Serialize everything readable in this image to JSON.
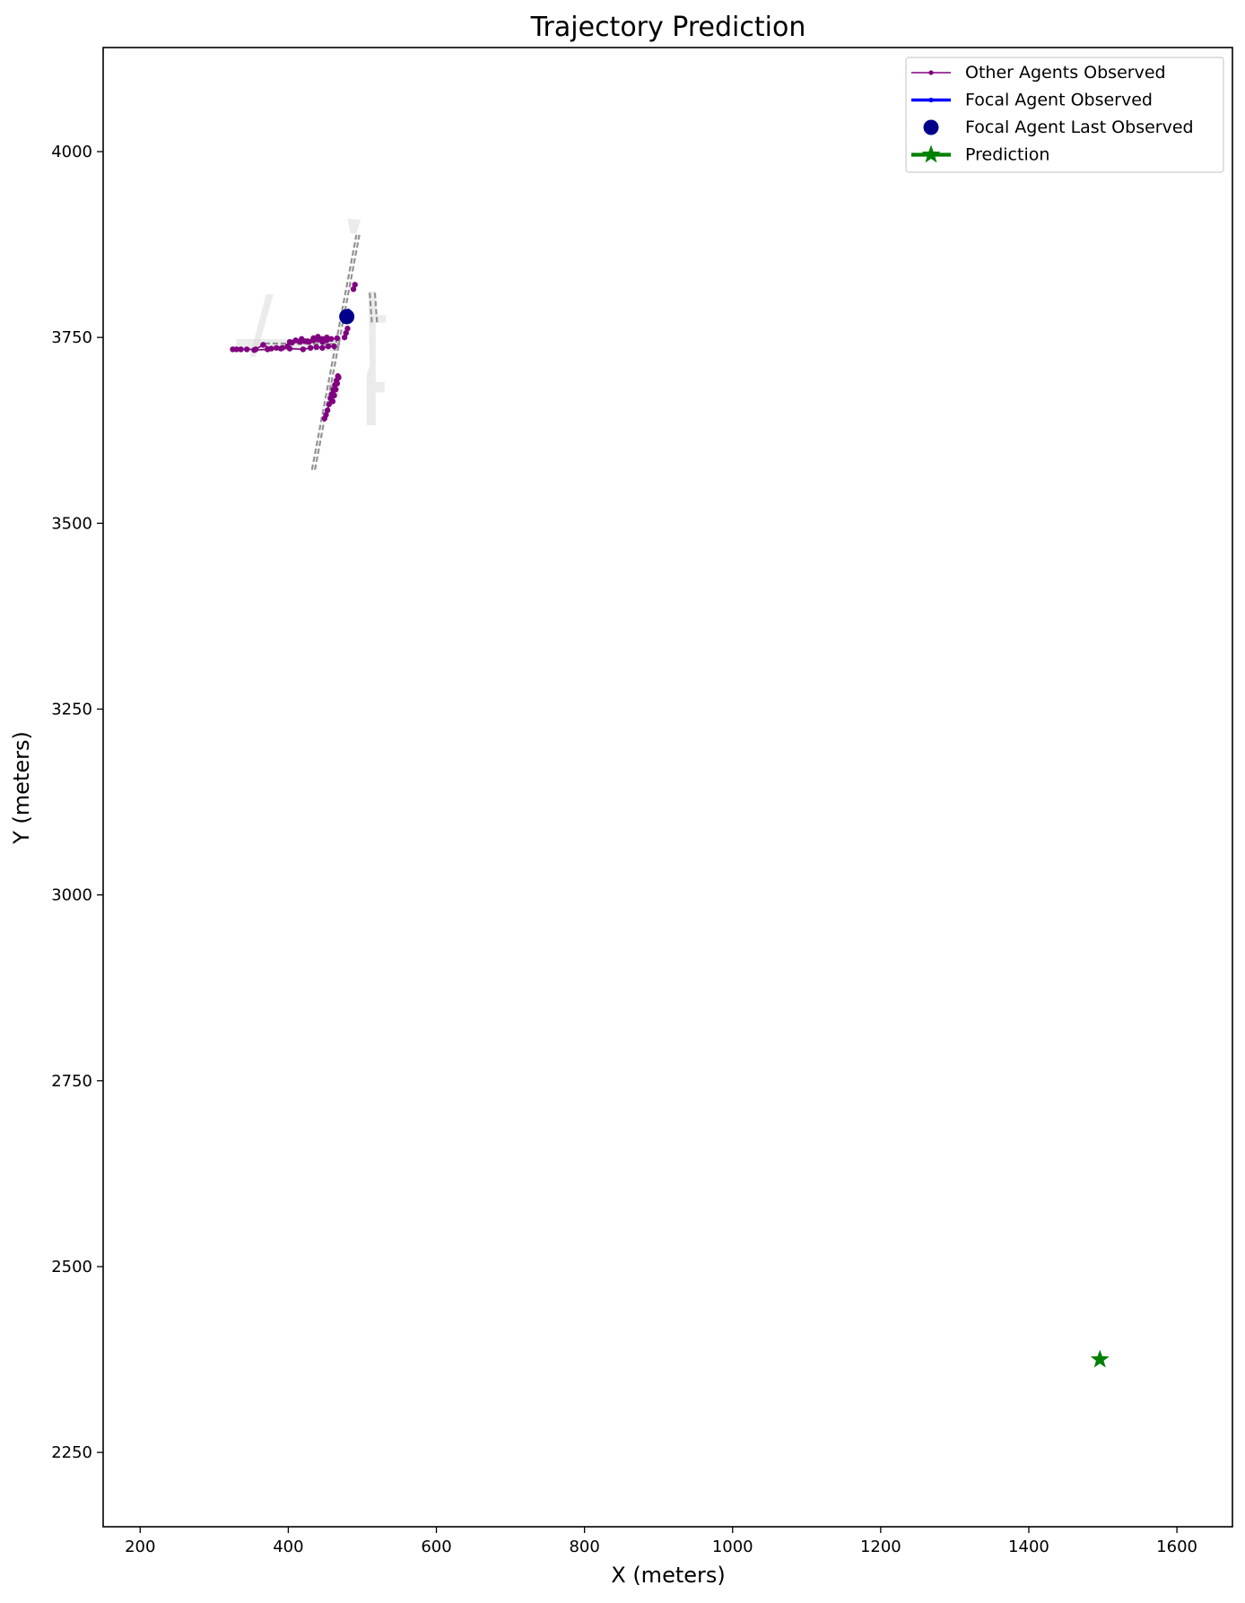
{
  "chart_data": {
    "type": "scatter",
    "title": "Trajectory Prediction",
    "xlabel": "X (meters)",
    "ylabel": "Y (meters)",
    "xlim": [
      150,
      1675
    ],
    "ylim": [
      2150,
      4140
    ],
    "xticks": [
      200,
      400,
      600,
      800,
      1000,
      1200,
      1400,
      1600
    ],
    "yticks": [
      2250,
      2500,
      2750,
      3000,
      3250,
      3500,
      3750,
      4000
    ],
    "grid": false,
    "legend_position": "top-right",
    "legend": [
      {
        "label": "Other Agents Observed",
        "style": "thin-line-dot",
        "color": "#800080"
      },
      {
        "label": "Focal Agent Observed",
        "style": "thick-line-dot",
        "color": "#0000ff"
      },
      {
        "label": "Focal Agent Last Observed",
        "style": "marker",
        "color": "#00008b"
      },
      {
        "label": "Prediction",
        "style": "line-star",
        "color": "#008000"
      }
    ],
    "map_lanes": [
      [
        [
          436,
          3572
        ],
        [
          496,
          3888
        ]
      ],
      [
        [
          432,
          3572
        ],
        [
          492,
          3888
        ]
      ],
      [
        [
          510,
          3810
        ],
        [
          513,
          3768
        ]
      ],
      [
        [
          517,
          3810
        ],
        [
          520,
          3768
        ]
      ],
      [
        [
          368,
          3742
        ],
        [
          470,
          3741
        ]
      ]
    ],
    "map_areas": [
      [
        [
          356,
          3724
        ],
        [
          380,
          3808
        ],
        [
          370,
          3808
        ],
        [
          348,
          3724
        ]
      ],
      [
        [
          330,
          3748
        ],
        [
          470,
          3748
        ],
        [
          470,
          3732
        ],
        [
          330,
          3732
        ]
      ],
      [
        [
          508,
          3812
        ],
        [
          518,
          3812
        ],
        [
          518,
          3780
        ],
        [
          532,
          3780
        ],
        [
          532,
          3770
        ],
        [
          518,
          3770
        ],
        [
          518,
          3690
        ],
        [
          530,
          3690
        ],
        [
          530,
          3676
        ],
        [
          518,
          3676
        ],
        [
          518,
          3632
        ],
        [
          506,
          3632
        ],
        [
          506,
          3700
        ],
        [
          510,
          3712
        ]
      ],
      [
        [
          480,
          3910
        ],
        [
          498,
          3908
        ],
        [
          492,
          3890
        ],
        [
          484,
          3890
        ]
      ],
      [
        [
          455,
          3690
        ],
        [
          470,
          3690
        ],
        [
          468,
          3668
        ],
        [
          454,
          3668
        ]
      ]
    ],
    "other_agents": [
      {
        "name": "Other Agents Observed",
        "x": [
          325,
          330,
          336,
          344,
          356,
          366,
          377,
          384,
          392,
          399,
          405,
          410,
          416,
          422,
          428,
          434,
          440,
          446,
          452
        ],
        "y": [
          3734,
          3734,
          3734,
          3734,
          3734,
          3740,
          3735,
          3736,
          3736,
          3738,
          3743,
          3746,
          3744,
          3745,
          3744,
          3746,
          3747,
          3744,
          3746
        ]
      },
      {
        "name": "Other Agents Observed",
        "x": [
          402,
          410,
          418,
          426,
          434,
          440,
          446,
          452,
          458,
          466
        ],
        "y": [
          3744,
          3746,
          3748,
          3745,
          3749,
          3751,
          3748,
          3750,
          3748,
          3749
        ]
      },
      {
        "name": "Other Agents Observed",
        "x": [
          354,
          372,
          390,
          402,
          420,
          430,
          438,
          446,
          454,
          462
        ],
        "y": [
          3733,
          3734,
          3735,
          3735,
          3734,
          3736,
          3737,
          3736,
          3738,
          3738
        ]
      },
      {
        "name": "Other Agents Observed",
        "x": [
          449,
          451,
          453,
          455,
          457,
          459,
          461,
          463,
          465,
          467
        ],
        "y": [
          3641,
          3646,
          3652,
          3660,
          3668,
          3674,
          3680,
          3686,
          3692,
          3698
        ]
      },
      {
        "name": "Other Agents Observed",
        "x": [
          460,
          462,
          464,
          466,
          468
        ],
        "y": [
          3664,
          3672,
          3680,
          3688,
          3696
        ]
      },
      {
        "name": "Other Agents Observed",
        "x": [
          476,
          478,
          480
        ],
        "y": [
          3750,
          3756,
          3762
        ]
      },
      {
        "name": "Other Agents Observed",
        "x": [
          488,
          490
        ],
        "y": [
          3815,
          3821
        ]
      }
    ],
    "focal_observed": {
      "name": "Focal Agent Observed",
      "x": [
        480,
        481
      ],
      "y": [
        3781,
        3785
      ]
    },
    "focal_last": {
      "name": "Focal Agent Last Observed",
      "x": 479,
      "y": 3778
    },
    "prediction": {
      "name": "Prediction",
      "x": [
        1496
      ],
      "y": [
        2375
      ]
    }
  }
}
